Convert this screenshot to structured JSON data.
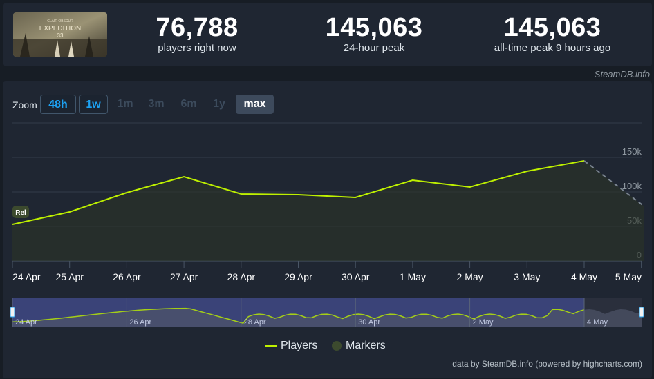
{
  "header": {
    "stats": [
      {
        "value": "76,788",
        "label": "players right now"
      },
      {
        "value": "145,063",
        "label": "24-hour peak"
      },
      {
        "value": "145,063",
        "label": "all-time peak 9 hours ago"
      }
    ],
    "credit": "SteamDB.info"
  },
  "zoom": {
    "label": "Zoom",
    "buttons": [
      {
        "label": "48h",
        "state": "on"
      },
      {
        "label": "1w",
        "state": "on"
      },
      {
        "label": "1m",
        "state": "off"
      },
      {
        "label": "3m",
        "state": "off"
      },
      {
        "label": "6m",
        "state": "off"
      },
      {
        "label": "1y",
        "state": "off"
      },
      {
        "label": "max",
        "state": "selected"
      }
    ]
  },
  "chart_data": {
    "type": "line",
    "x_labels": [
      "24 Apr",
      "25 Apr",
      "26 Apr",
      "27 Apr",
      "28 Apr",
      "29 Apr",
      "30 Apr",
      "1 May",
      "2 May",
      "3 May",
      "4 May",
      "5 May"
    ],
    "y_ticks": [
      "0",
      "50k",
      "100k",
      "150k"
    ],
    "ylim": [
      0,
      200000
    ],
    "series": [
      {
        "name": "Players",
        "color": "#bef000",
        "values": [
          53000,
          71000,
          99000,
          122000,
          97000,
          96000,
          92000,
          117000,
          107000,
          130000,
          145063,
          79000
        ]
      }
    ],
    "marker_label": "Rel",
    "navigator_labels": [
      "24 Apr",
      "26 Apr",
      "28 Apr",
      "30 Apr",
      "2 May",
      "4 May"
    ],
    "legend": [
      {
        "name": "Players",
        "color": "#bef000"
      },
      {
        "name": "Markers",
        "color": "#3c4a2e"
      }
    ],
    "grid": true
  },
  "footer": "data by SteamDB.info (powered by highcharts.com)"
}
